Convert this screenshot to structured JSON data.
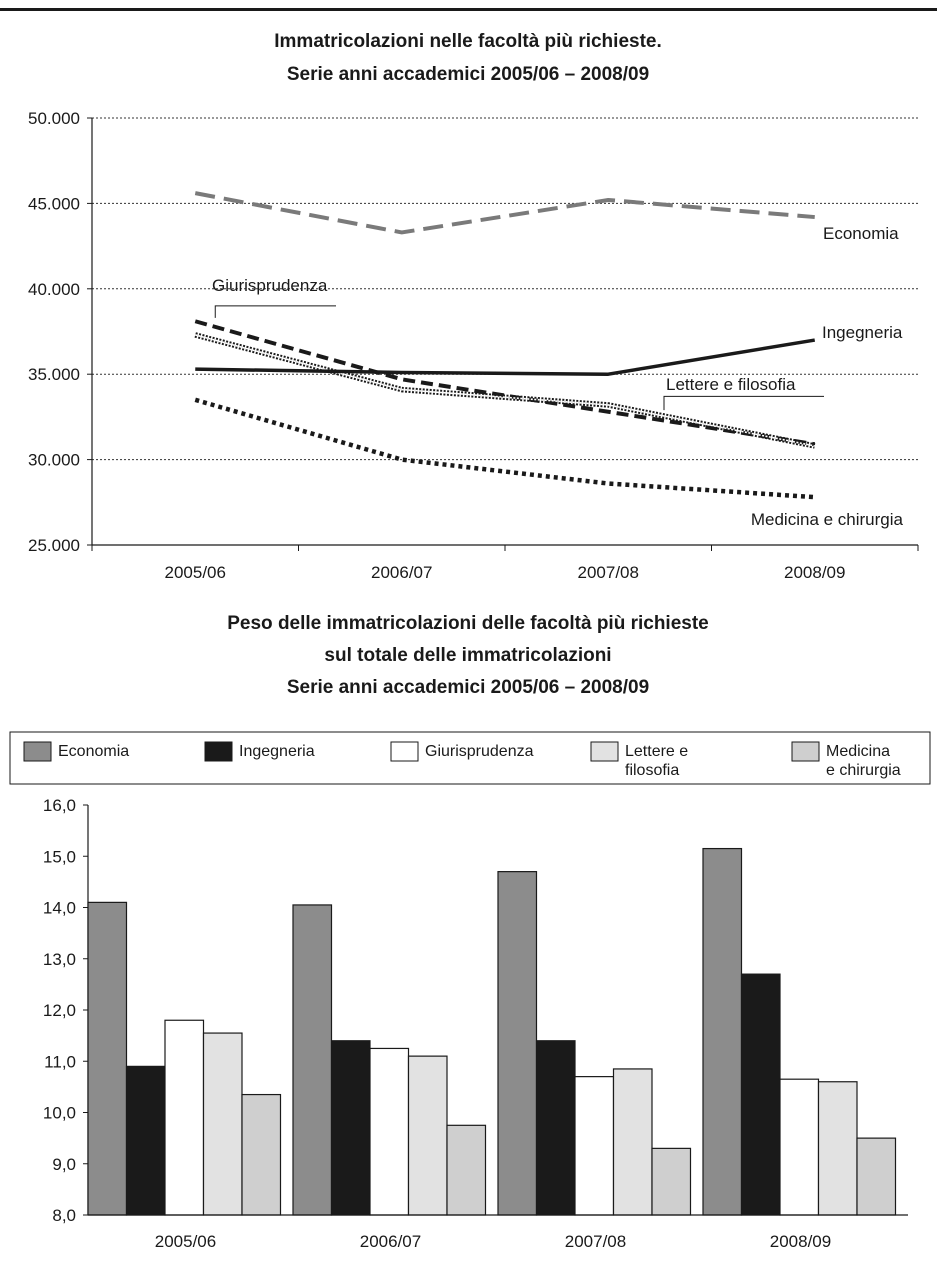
{
  "colors": {
    "Economia": "#8c8c8c",
    "Ingegneria": "#1a1a1a",
    "Giurisprudenza": "#ffffff",
    "Lettere e filosofia": "#e2e2e2",
    "Medicina e chirurgia": "#cfcfcf"
  },
  "chart_data": [
    {
      "type": "line",
      "title": [
        "Immatricolazioni nelle facoltà più richieste.",
        "Serie anni accademici 2005/06 – 2008/09"
      ],
      "categories": [
        "2005/06",
        "2006/07",
        "2007/08",
        "2008/09"
      ],
      "ylim": [
        25000,
        50000
      ],
      "yticks": [
        {
          "value": 25000,
          "label": "25.000"
        },
        {
          "value": 30000,
          "label": "30.000"
        },
        {
          "value": 35000,
          "label": "35.000"
        },
        {
          "value": 40000,
          "label": "40.000"
        },
        {
          "value": 45000,
          "label": "45.000"
        },
        {
          "value": 50000,
          "label": "50.000"
        }
      ],
      "grid": true,
      "series": [
        {
          "name": "Economia",
          "style": "long-dash-gray",
          "values": [
            45600,
            43300,
            45200,
            44200
          ]
        },
        {
          "name": "Ingegneria",
          "style": "solid-black",
          "values": [
            35300,
            35100,
            35000,
            37000
          ]
        },
        {
          "name": "Giurisprudenza",
          "style": "dashed-black",
          "values": [
            38100,
            34700,
            32800,
            30900
          ]
        },
        {
          "name": "Lettere e filosofia",
          "style": "dotted-outline",
          "values": [
            37300,
            34100,
            33200,
            30800
          ]
        },
        {
          "name": "Medicina e chirurgia",
          "style": "dotted-black",
          "values": [
            33500,
            30000,
            28600,
            27800
          ]
        }
      ]
    },
    {
      "type": "bar",
      "title": [
        "Peso delle immatricolazioni delle facoltà più richieste",
        "sul totale delle immatricolazioni",
        "Serie anni accademici 2005/06 – 2008/09"
      ],
      "categories": [
        "2005/06",
        "2006/07",
        "2007/08",
        "2008/09"
      ],
      "ylim": [
        8.0,
        16.0
      ],
      "yticks": [
        "8,0",
        "9,0",
        "10,0",
        "11,0",
        "12,0",
        "13,0",
        "14,0",
        "15,0",
        "16,0"
      ],
      "legend": [
        {
          "name": "Economia",
          "lines": [
            "Economia"
          ]
        },
        {
          "name": "Ingegneria",
          "lines": [
            "Ingegneria"
          ]
        },
        {
          "name": "Giurisprudenza",
          "lines": [
            "Giurisprudenza"
          ]
        },
        {
          "name": "Lettere e filosofia",
          "lines": [
            "Lettere e",
            "filosofia"
          ]
        },
        {
          "name": "Medicina e chirurgia",
          "lines": [
            "Medicina",
            "e chirurgia"
          ]
        }
      ],
      "series": [
        {
          "name": "Economia",
          "values": [
            14.1,
            14.05,
            14.7,
            15.15
          ]
        },
        {
          "name": "Ingegneria",
          "values": [
            10.9,
            11.4,
            11.4,
            12.7
          ]
        },
        {
          "name": "Giurisprudenza",
          "values": [
            11.8,
            11.25,
            10.7,
            10.65
          ]
        },
        {
          "name": "Lettere e filosofia",
          "values": [
            11.55,
            11.1,
            10.85,
            10.6
          ]
        },
        {
          "name": "Medicina e chirurgia",
          "values": [
            10.35,
            9.75,
            9.3,
            9.5
          ]
        }
      ]
    }
  ]
}
